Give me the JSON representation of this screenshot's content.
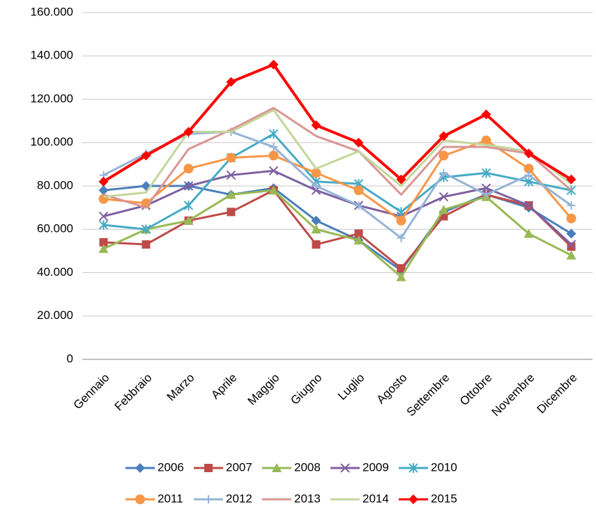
{
  "chart_data": {
    "type": "line",
    "categories": [
      "Gennaio",
      "Febbraio",
      "Marzo",
      "Aprile",
      "Maggio",
      "Giugno",
      "Luglio",
      "Agosto",
      "Settembre",
      "Ottobre",
      "Novembre",
      "Dicembre"
    ],
    "ylim": [
      0,
      160000
    ],
    "yticks": [
      0,
      {
        "value": 20000,
        "label": "20.000"
      },
      {
        "value": 40000,
        "label": "40.000"
      },
      {
        "value": 60000,
        "label": "60.000"
      },
      {
        "value": 80000,
        "label": "80.000"
      },
      {
        "value": 100000,
        "label": "100.000"
      },
      {
        "value": 120000,
        "label": "120.000"
      },
      {
        "value": 140000,
        "label": "140.000"
      },
      {
        "value": 160000,
        "label": "160.000"
      }
    ],
    "grid": true,
    "legend": "bottom",
    "series": [
      {
        "name": "2006",
        "color": "#4a7ebb",
        "marker": "diamond",
        "values": [
          78000,
          80000,
          80000,
          76000,
          79000,
          64000,
          55000,
          41000,
          68000,
          76000,
          70000,
          58000
        ]
      },
      {
        "name": "2007",
        "color": "#be4b48",
        "marker": "square",
        "values": [
          54000,
          53000,
          64000,
          68000,
          78000,
          53000,
          58000,
          42000,
          66000,
          76000,
          71000,
          52000
        ]
      },
      {
        "name": "2008",
        "color": "#98b954",
        "marker": "triangle",
        "values": [
          51000,
          60000,
          64000,
          76000,
          78000,
          60000,
          55000,
          38000,
          69000,
          75000,
          58000,
          48000
        ]
      },
      {
        "name": "2009",
        "color": "#7d60a0",
        "marker": "x",
        "values": [
          66000,
          71000,
          80000,
          85000,
          87000,
          78000,
          71000,
          66000,
          75000,
          79000,
          71000,
          53000
        ]
      },
      {
        "name": "2010",
        "color": "#46aac5",
        "marker": "star",
        "values": [
          62000,
          60000,
          71000,
          93000,
          104000,
          82000,
          81000,
          68000,
          84000,
          86000,
          82000,
          78000
        ]
      },
      {
        "name": "2011",
        "color": "#f79646",
        "marker": "circle",
        "values": [
          74000,
          72000,
          88000,
          93000,
          94000,
          86000,
          78000,
          64000,
          94000,
          101000,
          88000,
          65000
        ]
      },
      {
        "name": "2012",
        "color": "#95b3d7",
        "marker": "plus",
        "values": [
          85000,
          95000,
          104000,
          105000,
          98000,
          80000,
          71000,
          56000,
          86000,
          76000,
          85000,
          71000
        ]
      },
      {
        "name": "2013",
        "color": "#d99694",
        "marker": "none",
        "values": [
          76000,
          70000,
          97000,
          106000,
          116000,
          103000,
          96000,
          76000,
          98000,
          98000,
          95000,
          78000
        ]
      },
      {
        "name": "2014",
        "color": "#c3d69b",
        "marker": "none",
        "values": [
          75000,
          77000,
          105000,
          105000,
          115000,
          88000,
          96000,
          80000,
          101000,
          99000,
          96000,
          81000
        ]
      },
      {
        "name": "2015",
        "color": "#ff0000",
        "marker": "diamond",
        "values": [
          82000,
          94000,
          105000,
          128000,
          136000,
          108000,
          100000,
          83000,
          103000,
          113000,
          95000,
          83000
        ]
      }
    ]
  }
}
